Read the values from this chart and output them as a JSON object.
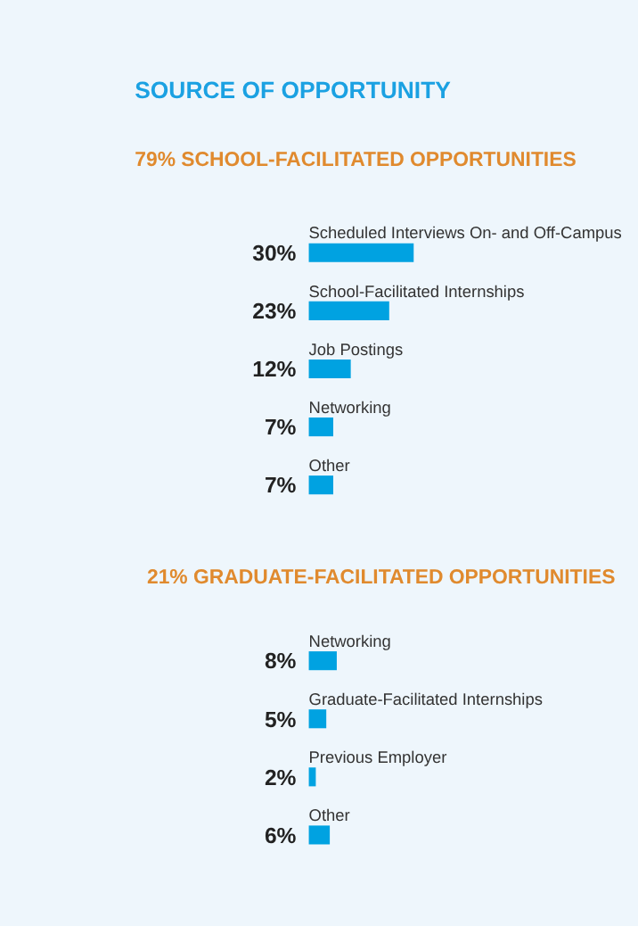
{
  "chart_data": [
    {
      "type": "bar",
      "orientation": "horizontal",
      "title": "SOURCE OF OPPORTUNITY",
      "subtitle": "79% SCHOOL-FACILITATED OPPORTUNITIES",
      "categories": [
        "Scheduled Interviews On- and Off-Campus",
        "School-Facilitated Internships",
        "Job Postings",
        "Networking",
        "Other"
      ],
      "values": [
        30,
        23,
        12,
        7,
        7
      ],
      "value_labels": [
        "30%",
        "23%",
        "12%",
        "7%",
        "7%"
      ],
      "color": "#00a2e1"
    },
    {
      "type": "bar",
      "orientation": "horizontal",
      "title": "21% GRADUATE-FACILITATED OPPORTUNITIES",
      "categories": [
        "Networking",
        "Graduate-Facilitated Internships",
        "Previous Employer",
        "Other"
      ],
      "values": [
        8,
        5,
        2,
        6
      ],
      "value_labels": [
        "8%",
        "5%",
        "2%",
        "6%"
      ],
      "color": "#00a2e1"
    }
  ]
}
